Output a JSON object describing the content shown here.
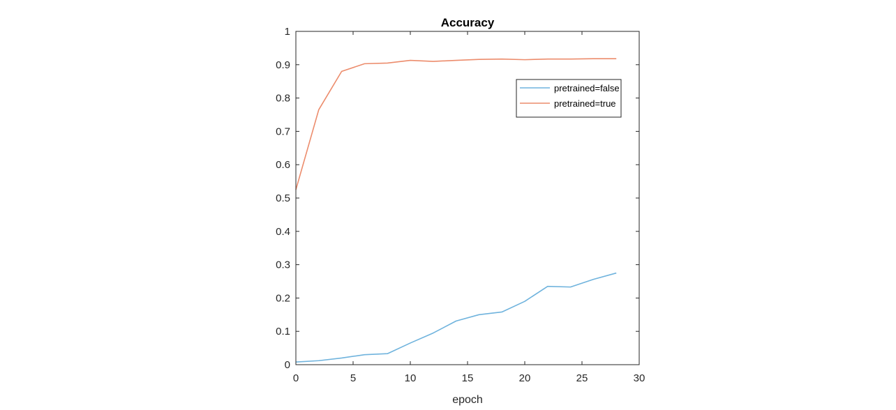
{
  "chart_data": {
    "type": "line",
    "title": "Accuracy",
    "xlabel": "epoch",
    "ylabel": "",
    "xlim": [
      0,
      30
    ],
    "ylim": [
      0,
      1
    ],
    "xticks": [
      0,
      5,
      10,
      15,
      20,
      25,
      30
    ],
    "yticks": [
      0,
      0.1,
      0.2,
      0.3,
      0.4,
      0.5,
      0.6,
      0.7,
      0.8,
      0.9,
      1
    ],
    "xtick_labels": [
      "0",
      "5",
      "10",
      "15",
      "20",
      "25",
      "30"
    ],
    "ytick_labels": [
      "0",
      "0.1",
      "0.2",
      "0.3",
      "0.4",
      "0.5",
      "0.6",
      "0.7",
      "0.8",
      "0.9",
      "1"
    ],
    "grid": false,
    "legend_position": "top-right",
    "x": [
      0,
      2,
      4,
      6,
      8,
      10,
      12,
      14,
      16,
      18,
      20,
      22,
      24,
      26,
      28
    ],
    "series": [
      {
        "name": "pretrained=false",
        "color": "#6fb3dd",
        "values": [
          0.008,
          0.012,
          0.02,
          0.03,
          0.033,
          0.065,
          0.095,
          0.131,
          0.15,
          0.158,
          0.19,
          0.235,
          0.233,
          0.256,
          0.275
        ]
      },
      {
        "name": "pretrained=true",
        "color": "#ec8c6c",
        "values": [
          0.525,
          0.765,
          0.88,
          0.903,
          0.905,
          0.913,
          0.91,
          0.913,
          0.916,
          0.917,
          0.915,
          0.917,
          0.917,
          0.918,
          0.918
        ]
      }
    ]
  }
}
